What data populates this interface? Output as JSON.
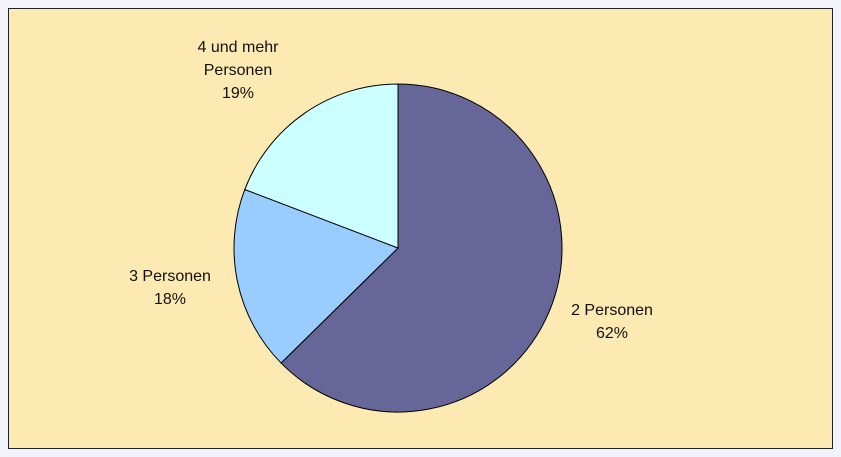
{
  "chart_data": {
    "type": "pie",
    "categories": [
      "2 Personen",
      "3 Personen",
      "4 und mehr Personen"
    ],
    "values": [
      62,
      18,
      19
    ],
    "value_labels": [
      "62%",
      "18%",
      "19%"
    ],
    "colors": [
      "#666699",
      "#99ccff",
      "#ccffff"
    ]
  }
}
